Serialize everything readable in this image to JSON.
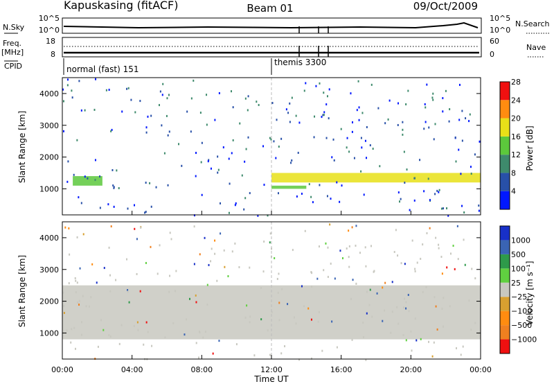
{
  "header": {
    "station": "Kapuskasing (fitACF)",
    "beam": "Beam 01",
    "date": "09/Oct/2009"
  },
  "summary_panel": {
    "nsky_label": "N.Sky",
    "nsky_ticks": [
      "10^5",
      "10^0"
    ],
    "nsearch_label": "N.Search",
    "nsearch_ticks": [
      "10^5",
      "10^0"
    ],
    "freq_label": "Freq.",
    "freq_unit": "[MHz]",
    "freq_ticks": [
      "18",
      "8"
    ],
    "nave_label": "Nave",
    "nave_ticks": [
      "60",
      "0"
    ],
    "cpid_label": "CPID",
    "cpid_segments": [
      {
        "label": "normal (fast) 151",
        "start_h": 0,
        "end_h": 12
      },
      {
        "label": "themis 3300",
        "start_h": 12,
        "end_h": 24
      }
    ]
  },
  "chart_data": [
    {
      "type": "heatmap",
      "title": "",
      "ylabel": "Slant Range [km]",
      "xlabel": "Time UT",
      "xlim": [
        0,
        24
      ],
      "ylim": [
        180,
        4500
      ],
      "y_ticks": [
        1000,
        2000,
        3000,
        4000
      ],
      "x_tick_labels": [
        "00:00",
        "04:00",
        "08:00",
        "12:00",
        "16:00",
        "20:00",
        "00:00"
      ],
      "colorbar": {
        "label": "Power [dB]",
        "ticks": [
          "4",
          "8",
          "12",
          "16",
          "20",
          "24",
          "28"
        ],
        "colors": [
          "#0018ff",
          "#2850a8",
          "#3e8a6c",
          "#5cc83c",
          "#e8e018",
          "#ff8c10",
          "#f01010"
        ]
      },
      "features": [
        {
          "name": "early echo band",
          "time_h": [
            0.6,
            2.3
          ],
          "range_km": [
            1100,
            1400
          ],
          "power_db": 16
        },
        {
          "name": "main echo band",
          "time_h": [
            12.0,
            24.0
          ],
          "range_km": [
            1200,
            1500
          ],
          "power_db": 20
        },
        {
          "name": "lower echo band",
          "time_h": [
            12.0,
            14.0
          ],
          "range_km": [
            1000,
            1100
          ],
          "power_db": 16
        }
      ]
    },
    {
      "type": "heatmap",
      "title": "",
      "ylabel": "Slant Range [km]",
      "xlabel": "Time UT",
      "xlim": [
        0,
        24
      ],
      "ylim": [
        180,
        4500
      ],
      "y_ticks": [
        1000,
        2000,
        3000,
        4000
      ],
      "x_tick_labels": [
        "00:00",
        "04:00",
        "08:00",
        "12:00",
        "16:00",
        "20:00",
        "00:00"
      ],
      "colorbar": {
        "label": "Velocity [m s⁻¹]",
        "ticks": [
          "1000",
          "500",
          "100",
          "25",
          "−25",
          "−100",
          "−500",
          "−1000"
        ],
        "colors": [
          "#1830c8",
          "#3a64b4",
          "#2e9a4a",
          "#60d040",
          "#c8c8c0",
          "#d8a030",
          "#ff8c10",
          "#f08020",
          "#f01010"
        ]
      },
      "features": [
        {
          "name": "near-zero velocity echoes",
          "time_h": [
            0.0,
            24.0
          ],
          "range_km": [
            800,
            2500
          ],
          "velocity_mps": 0
        }
      ]
    }
  ]
}
